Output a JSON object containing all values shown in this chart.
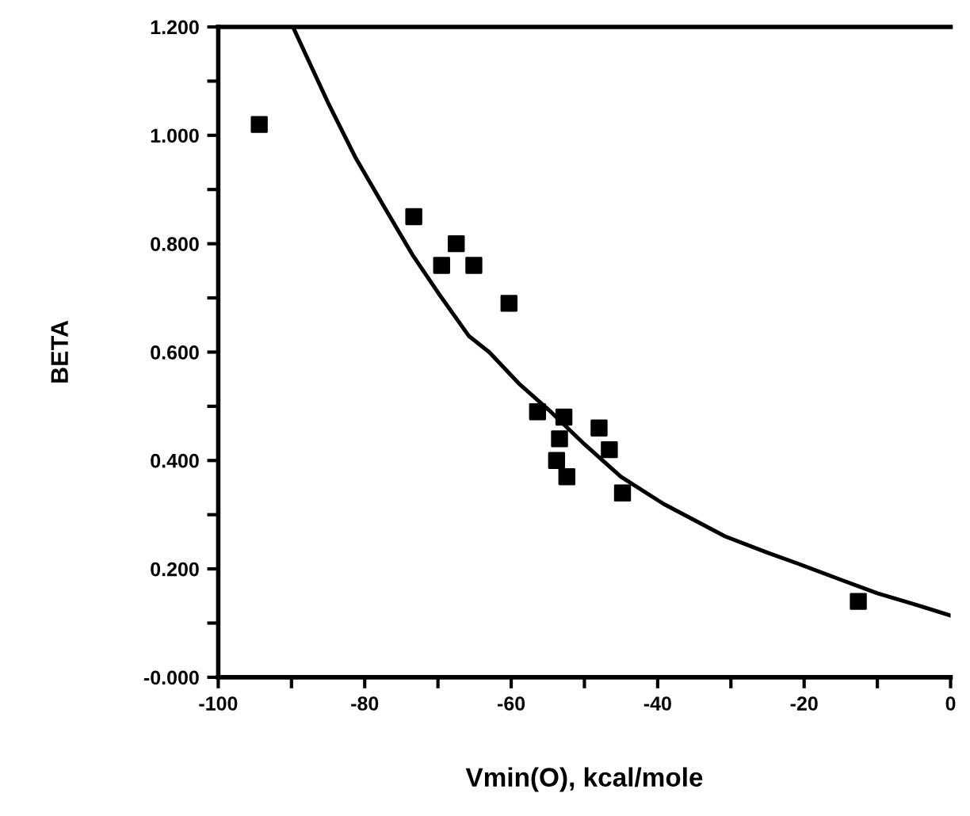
{
  "chart_data": {
    "type": "scatter",
    "xlabel": "Vmin(O), kcal/mole",
    "ylabel": "BETA",
    "xlim": [
      -100,
      0
    ],
    "ylim": [
      0,
      1.2
    ],
    "xticks": [
      -100,
      {
        "value": -90,
        "label": null
      },
      -80,
      {
        "value": -70,
        "label": null
      },
      -60,
      {
        "value": -50,
        "label": null
      },
      -40,
      {
        "value": -30,
        "label": null
      },
      -20,
      {
        "value": -10,
        "label": null
      },
      0
    ],
    "yticks": [
      {
        "value": 0,
        "label": "-0.000"
      },
      {
        "value": 0.1,
        "label": null
      },
      {
        "value": 0.2,
        "label": "0.200"
      },
      {
        "value": 0.3,
        "label": null
      },
      {
        "value": 0.4,
        "label": "0.400"
      },
      {
        "value": 0.5,
        "label": null
      },
      {
        "value": 0.6,
        "label": "0.600"
      },
      {
        "value": 0.7,
        "label": null
      },
      {
        "value": 0.8,
        "label": "0.800"
      },
      {
        "value": 0.9,
        "label": null
      },
      {
        "value": 1.0,
        "label": "1.000"
      },
      {
        "value": 1.1,
        "label": null
      },
      {
        "value": 1.2,
        "label": "1.200"
      }
    ],
    "marker": "square",
    "grid": false,
    "series": [
      {
        "color": "#000000",
        "x": [
          -94.4,
          -73.3,
          -69.5,
          -67.5,
          -65.1,
          -60.3,
          -56.4,
          -52.8,
          -53.4,
          -53.8,
          -52.4,
          -48.0,
          -46.6,
          -44.8,
          -12.6
        ],
        "values": [
          1.02,
          0.85,
          0.76,
          0.8,
          0.76,
          0.69,
          0.49,
          0.48,
          0.44,
          0.4,
          0.37,
          0.46,
          0.42,
          0.34,
          0.14
        ]
      },
      {
        "type": "line",
        "color": "#000000",
        "marker": "none",
        "line_style": "solid",
        "x": [
          -89.8,
          -85,
          -81.3,
          -77,
          -73.5,
          -70,
          -65.8,
          -63,
          -58.8,
          -54.6,
          -50,
          -45,
          -39.2,
          -35,
          -30.8,
          -25,
          -20.9,
          -15,
          -10,
          -5,
          0
        ],
        "values": [
          1.2,
          1.06,
          0.96,
          0.86,
          0.78,
          0.71,
          0.63,
          0.6,
          0.54,
          0.49,
          0.43,
          0.37,
          0.32,
          0.29,
          0.26,
          0.23,
          0.21,
          0.18,
          0.155,
          0.135,
          0.114
        ]
      }
    ]
  }
}
